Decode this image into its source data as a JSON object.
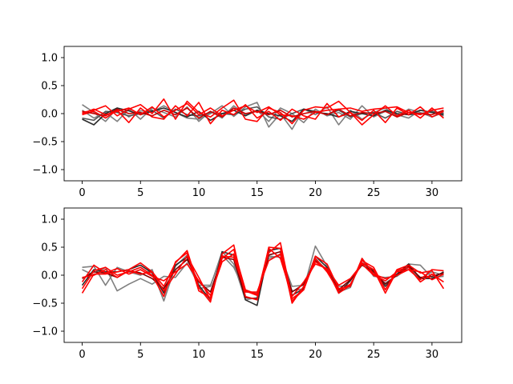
{
  "chart_data": [
    {
      "type": "line",
      "title": "",
      "xlabel": "",
      "ylabel": "",
      "xlim": [
        -1.55,
        32.55
      ],
      "ylim": [
        -1.2,
        1.2
      ],
      "xticks": [
        0,
        5,
        10,
        15,
        20,
        25,
        30
      ],
      "yticks": [
        -1.0,
        -0.5,
        0.0,
        0.5,
        1.0
      ],
      "xtick_labels": [
        "0",
        "5",
        "10",
        "15",
        "20",
        "25",
        "30"
      ],
      "ytick_labels": [
        "−1.0",
        "−0.5",
        "0.0",
        "0.5",
        "1.0"
      ],
      "grid": false,
      "x": [
        0,
        1,
        2,
        3,
        4,
        5,
        6,
        7,
        8,
        9,
        10,
        11,
        12,
        13,
        14,
        15,
        16,
        17,
        18,
        19,
        20,
        21,
        22,
        23,
        24,
        25,
        26,
        27,
        28,
        29,
        30,
        31
      ],
      "series": [
        {
          "color": "#7f7f7f",
          "values": [
            0.16,
            0.02,
            -0.14,
            0.1,
            -0.06,
            0.05,
            0.03,
            0.14,
            0.02,
            -0.08,
            -0.1,
            0.0,
            0.14,
            -0.05,
            0.12,
            0.2,
            -0.24,
            0.0,
            -0.28,
            0.08,
            -0.02,
            0.12,
            -0.2,
            0.06,
            -0.1,
            0.02,
            0.1,
            -0.05,
            0.08,
            0.02,
            -0.06,
            0.02
          ]
        },
        {
          "color": "#7f7f7f",
          "values": [
            0.06,
            -0.08,
            0.02,
            -0.14,
            0.08,
            -0.1,
            0.1,
            0.02,
            -0.06,
            0.12,
            -0.14,
            0.04,
            -0.08,
            0.14,
            -0.02,
            0.06,
            -0.14,
            0.1,
            0.0,
            -0.16,
            0.08,
            -0.04,
            0.02,
            -0.1,
            0.14,
            -0.06,
            0.04,
            -0.02,
            -0.08,
            0.06,
            0.02,
            -0.04
          ]
        },
        {
          "color": "#555555",
          "values": [
            -0.08,
            -0.12,
            0.04,
            0.02,
            -0.04,
            0.0,
            0.06,
            -0.08,
            0.08,
            -0.02,
            -0.04,
            0.02,
            0.0,
            -0.02,
            0.08,
            0.12,
            -0.06,
            -0.1,
            0.0,
            0.08,
            0.04,
            -0.02,
            0.06,
            -0.06,
            0.0,
            0.02,
            -0.08,
            0.04,
            -0.02,
            0.0,
            0.04,
            0.0
          ]
        },
        {
          "color": "#2b2b2b",
          "values": [
            -0.1,
            -0.2,
            0.0,
            0.1,
            0.05,
            -0.02,
            0.04,
            0.1,
            0.02,
            -0.06,
            0.04,
            -0.12,
            0.0,
            0.06,
            -0.04,
            0.06,
            0.0,
            -0.04,
            -0.14,
            0.08,
            0.02,
            0.0,
            -0.06,
            0.04,
            0.0,
            -0.04,
            0.06,
            0.0,
            -0.02,
            0.06,
            0.02,
            -0.02
          ]
        },
        {
          "color": "#ff0000",
          "values": [
            0.02,
            0.06,
            0.14,
            -0.04,
            0.08,
            0.16,
            0.0,
            0.26,
            -0.1,
            0.22,
            0.02,
            -0.06,
            0.1,
            0.24,
            -0.1,
            -0.14,
            0.1,
            0.02,
            -0.18,
            0.06,
            0.12,
            0.1,
            0.22,
            0.02,
            -0.2,
            -0.02,
            0.14,
            -0.04,
            0.06,
            -0.08,
            0.1,
            -0.08
          ]
        },
        {
          "color": "#ff0000",
          "values": [
            -0.02,
            0.04,
            -0.08,
            0.06,
            -0.16,
            0.1,
            -0.06,
            -0.1,
            0.14,
            -0.04,
            0.2,
            -0.18,
            0.06,
            -0.02,
            0.16,
            -0.08,
            0.04,
            -0.12,
            0.08,
            -0.04,
            -0.1,
            0.18,
            -0.06,
            0.02,
            -0.12,
            0.06,
            -0.16,
            0.1,
            -0.02,
            0.12,
            -0.06,
            0.04
          ]
        },
        {
          "color": "#cc0000",
          "values": [
            0.04,
            0.0,
            -0.04,
            0.08,
            0.0,
            0.02,
            -0.04,
            0.06,
            -0.02,
            0.1,
            -0.08,
            0.04,
            -0.06,
            0.1,
            0.0,
            0.04,
            -0.02,
            0.06,
            -0.06,
            0.0,
            0.04,
            -0.02,
            0.08,
            -0.04,
            0.02,
            0.0,
            0.04,
            -0.06,
            0.02,
            0.0,
            -0.02,
            0.06
          ]
        },
        {
          "color": "#ff0000",
          "values": [
            0.0,
            0.08,
            -0.02,
            0.04,
            0.1,
            -0.02,
            0.12,
            -0.06,
            0.06,
            0.18,
            -0.02,
            0.1,
            -0.04,
            0.06,
            0.14,
            0.02,
            0.12,
            -0.02,
            -0.04,
            -0.1,
            0.02,
            0.06,
            0.08,
            0.1,
            0.04,
            0.08,
            0.1,
            0.12,
            0.02,
            -0.02,
            0.06,
            0.1
          ]
        }
      ]
    },
    {
      "type": "line",
      "title": "",
      "xlabel": "",
      "ylabel": "",
      "xlim": [
        -1.55,
        32.55
      ],
      "ylim": [
        -1.2,
        1.2
      ],
      "xticks": [
        0,
        5,
        10,
        15,
        20,
        25,
        30
      ],
      "yticks": [
        -1.0,
        -0.5,
        0.0,
        0.5,
        1.0
      ],
      "xtick_labels": [
        "0",
        "5",
        "10",
        "15",
        "20",
        "25",
        "30"
      ],
      "ytick_labels": [
        "−1.0",
        "−0.5",
        "0.0",
        "0.5",
        "1.0"
      ],
      "grid": false,
      "x": [
        0,
        1,
        2,
        3,
        4,
        5,
        6,
        7,
        8,
        9,
        10,
        11,
        12,
        13,
        14,
        15,
        16,
        17,
        18,
        19,
        20,
        21,
        22,
        23,
        24,
        25,
        26,
        27,
        28,
        29,
        30,
        31
      ],
      "series": [
        {
          "color": "#7f7f7f",
          "values": [
            0.14,
            0.16,
            -0.18,
            0.14,
            0.06,
            0.0,
            0.1,
            -0.46,
            0.16,
            0.36,
            -0.24,
            -0.2,
            0.42,
            0.2,
            -0.44,
            -0.4,
            0.34,
            0.32,
            -0.28,
            -0.24,
            0.52,
            0.16,
            -0.3,
            -0.22,
            0.3,
            0.02,
            -0.14,
            0.0,
            0.2,
            0.18,
            -0.04,
            -0.02
          ]
        },
        {
          "color": "#7f7f7f",
          "values": [
            0.1,
            0.0,
            0.14,
            -0.28,
            -0.16,
            -0.06,
            -0.16,
            -0.02,
            -0.04,
            0.22,
            -0.18,
            -0.18,
            0.36,
            0.14,
            -0.3,
            -0.32,
            0.3,
            0.36,
            -0.2,
            -0.18,
            0.3,
            0.08,
            -0.2,
            -0.18,
            0.28,
            -0.02,
            -0.04,
            -0.02,
            0.14,
            -0.06,
            0.06,
            0.0
          ]
        },
        {
          "color": "#2b2b2b",
          "values": [
            -0.18,
            0.1,
            0.06,
            0.06,
            0.1,
            0.18,
            0.04,
            -0.32,
            0.18,
            0.32,
            -0.18,
            -0.44,
            0.42,
            0.36,
            -0.44,
            -0.54,
            0.44,
            0.48,
            -0.36,
            -0.24,
            0.34,
            0.14,
            -0.32,
            -0.1,
            0.22,
            0.08,
            -0.2,
            0.02,
            0.2,
            -0.06,
            -0.06,
            0.06
          ]
        },
        {
          "color": "#7a0000",
          "values": [
            -0.06,
            0.06,
            0.04,
            -0.04,
            0.08,
            0.04,
            -0.06,
            -0.24,
            0.1,
            0.28,
            -0.12,
            -0.3,
            0.32,
            0.28,
            -0.4,
            -0.42,
            0.36,
            0.42,
            -0.3,
            -0.16,
            0.26,
            0.1,
            -0.26,
            -0.08,
            0.18,
            0.06,
            -0.16,
            0.0,
            0.16,
            -0.04,
            -0.02,
            0.04
          ]
        },
        {
          "color": "#ff0000",
          "values": [
            -0.32,
            0.02,
            0.02,
            0.06,
            0.1,
            0.22,
            0.06,
            -0.2,
            0.22,
            0.44,
            -0.22,
            -0.48,
            0.38,
            0.54,
            -0.38,
            -0.44,
            0.5,
            0.48,
            -0.5,
            -0.2,
            0.24,
            0.1,
            -0.32,
            -0.18,
            0.26,
            0.14,
            -0.26,
            0.1,
            0.18,
            0.04,
            0.08,
            -0.24
          ]
        },
        {
          "color": "#ff0000",
          "values": [
            -0.24,
            0.08,
            0.14,
            0.0,
            0.06,
            0.14,
            0.0,
            -0.38,
            0.24,
            0.4,
            -0.28,
            -0.4,
            0.3,
            0.46,
            -0.26,
            -0.34,
            0.4,
            0.58,
            -0.42,
            -0.26,
            0.3,
            0.06,
            -0.28,
            -0.16,
            0.22,
            0.1,
            -0.32,
            0.08,
            0.14,
            -0.12,
            0.02,
            -0.12
          ]
        },
        {
          "color": "#ff0000",
          "values": [
            -0.12,
            0.18,
            0.04,
            0.12,
            0.02,
            0.1,
            -0.02,
            -0.1,
            0.06,
            0.2,
            -0.1,
            -0.36,
            0.24,
            0.38,
            -0.28,
            -0.36,
            0.48,
            0.3,
            -0.38,
            -0.12,
            0.2,
            0.12,
            -0.18,
            -0.06,
            0.2,
            0.0,
            -0.1,
            0.06,
            0.1,
            0.06,
            -0.08,
            0.02
          ]
        },
        {
          "color": "#ff0000",
          "values": [
            -0.04,
            0.0,
            0.1,
            -0.04,
            0.08,
            0.02,
            0.06,
            -0.28,
            0.02,
            0.34,
            -0.04,
            -0.44,
            0.34,
            0.32,
            -0.3,
            -0.3,
            0.26,
            0.38,
            -0.46,
            -0.26,
            0.34,
            0.2,
            -0.24,
            -0.2,
            0.3,
            0.02,
            -0.06,
            0.0,
            0.1,
            -0.08,
            0.1,
            0.08
          ]
        }
      ]
    }
  ]
}
